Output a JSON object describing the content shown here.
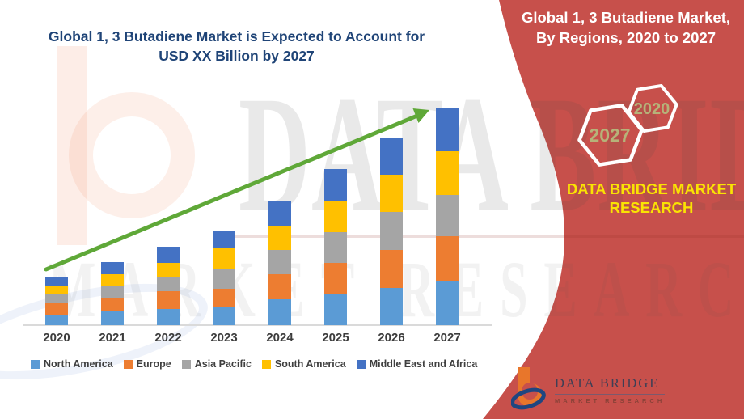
{
  "header": {
    "title_line1": "Global 1, 3 Butadiene Market is Expected to Account for",
    "title_line2": "USD XX Billion by 2027",
    "title_color": "#1F4477"
  },
  "panel": {
    "title_line1": "Global 1, 3 Butadiene Market,",
    "title_line2": "By Regions, 2020 to 2027",
    "accent_color": "#C7504B",
    "hex_label_color": "#B6B379",
    "hexagons": [
      {
        "label": "2027"
      },
      {
        "label": "2020"
      }
    ],
    "brand_line1": "DATA BRIDGE MARKET",
    "brand_line2": "RESEARCH",
    "brand_text_color": "#FAE303"
  },
  "logo": {
    "name": "DATA BRIDGE",
    "subtitle": "MARKET RESEARCH"
  },
  "watermark": {
    "line1": "DATA BRIDGE",
    "line2": "MARKET RESEARCH"
  },
  "chart_data": {
    "type": "bar",
    "stacked": true,
    "title": "Global 1, 3 Butadiene Market is Expected to Account for USD XX Billion by 2027",
    "xlabel": "",
    "ylabel": "",
    "value_axis_visible": false,
    "value_unit": "USD Billion (values undisclosed, XX)",
    "legend_position": "bottom",
    "categories": [
      "2020",
      "2021",
      "2022",
      "2023",
      "2024",
      "2025",
      "2026",
      "2027"
    ],
    "series": [
      {
        "name": "North America",
        "color": "#5B9BD5",
        "values": [
          13,
          17,
          20,
          22,
          32,
          39,
          46,
          55
        ]
      },
      {
        "name": "Europe",
        "color": "#ED7D31",
        "values": [
          14,
          17,
          22,
          23,
          31,
          38,
          47,
          55
        ]
      },
      {
        "name": "Asia Pacific",
        "color": "#A5A5A5",
        "values": [
          11,
          15,
          18,
          24,
          30,
          38,
          47,
          51
        ]
      },
      {
        "name": "South America",
        "color": "#FFC000",
        "values": [
          10,
          14,
          17,
          26,
          30,
          38,
          46,
          54
        ]
      },
      {
        "name": "Middle East and Africa",
        "color": "#4472C4",
        "values": [
          11,
          15,
          20,
          22,
          31,
          40,
          46,
          54
        ]
      }
    ],
    "totals": [
      59,
      78,
      97,
      117,
      154,
      193,
      232,
      269
    ],
    "trend_arrow": true,
    "arrow_color": "#5FA838"
  }
}
